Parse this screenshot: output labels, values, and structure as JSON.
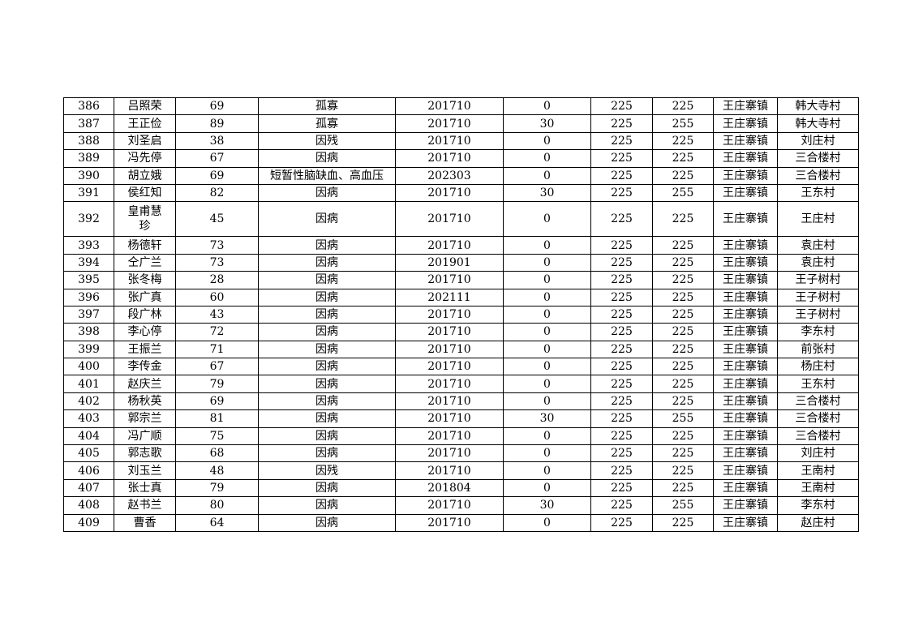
{
  "rows": [
    [
      "386",
      "吕照荣",
      "69",
      "孤寡",
      "201710",
      "0",
      "225",
      "225",
      "王庄寨镇",
      "韩大寺村"
    ],
    [
      "387",
      "王正俭",
      "89",
      "孤寡",
      "201710",
      "30",
      "225",
      "255",
      "王庄寨镇",
      "韩大寺村"
    ],
    [
      "388",
      "刘圣启",
      "38",
      "因残",
      "201710",
      "0",
      "225",
      "225",
      "王庄寨镇",
      "刘庄村"
    ],
    [
      "389",
      "冯先停",
      "67",
      "因病",
      "201710",
      "0",
      "225",
      "225",
      "王庄寨镇",
      "三合楼村"
    ],
    [
      "390",
      "胡立娥",
      "69",
      "短暂性脑缺血、高血压",
      "202303",
      "0",
      "225",
      "225",
      "王庄寨镇",
      "三合楼村"
    ],
    [
      "391",
      "侯红知",
      "82",
      "因病",
      "201710",
      "30",
      "225",
      "255",
      "王庄寨镇",
      "王东村"
    ],
    [
      "392",
      "皇甫慧珍",
      "45",
      "因病",
      "201710",
      "0",
      "225",
      "225",
      "王庄寨镇",
      "王庄村"
    ],
    [
      "393",
      "杨德轩",
      "73",
      "因病",
      "201710",
      "0",
      "225",
      "225",
      "王庄寨镇",
      "袁庄村"
    ],
    [
      "394",
      "仝广兰",
      "73",
      "因病",
      "201901",
      "0",
      "225",
      "225",
      "王庄寨镇",
      "袁庄村"
    ],
    [
      "395",
      "张冬梅",
      "28",
      "因病",
      "201710",
      "0",
      "225",
      "225",
      "王庄寨镇",
      "王子树村"
    ],
    [
      "396",
      "张广真",
      "60",
      "因病",
      "202111",
      "0",
      "225",
      "225",
      "王庄寨镇",
      "王子树村"
    ],
    [
      "397",
      "段广林",
      "43",
      "因病",
      "201710",
      "0",
      "225",
      "225",
      "王庄寨镇",
      "王子树村"
    ],
    [
      "398",
      "李心停",
      "72",
      "因病",
      "201710",
      "0",
      "225",
      "225",
      "王庄寨镇",
      "李东村"
    ],
    [
      "399",
      "王振兰",
      "71",
      "因病",
      "201710",
      "0",
      "225",
      "225",
      "王庄寨镇",
      "前张村"
    ],
    [
      "400",
      "李传金",
      "67",
      "因病",
      "201710",
      "0",
      "225",
      "225",
      "王庄寨镇",
      "杨庄村"
    ],
    [
      "401",
      "赵庆兰",
      "79",
      "因病",
      "201710",
      "0",
      "225",
      "225",
      "王庄寨镇",
      "王东村"
    ],
    [
      "402",
      "杨秋英",
      "69",
      "因病",
      "201710",
      "0",
      "225",
      "225",
      "王庄寨镇",
      "三合楼村"
    ],
    [
      "403",
      "郭宗兰",
      "81",
      "因病",
      "201710",
      "30",
      "225",
      "255",
      "王庄寨镇",
      "三合楼村"
    ],
    [
      "404",
      "冯广顺",
      "75",
      "因病",
      "201710",
      "0",
      "225",
      "225",
      "王庄寨镇",
      "三合楼村"
    ],
    [
      "405",
      "郭志歌",
      "68",
      "因病",
      "201710",
      "0",
      "225",
      "225",
      "王庄寨镇",
      "刘庄村"
    ],
    [
      "406",
      "刘玉兰",
      "48",
      "因残",
      "201710",
      "0",
      "225",
      "225",
      "王庄寨镇",
      "王南村"
    ],
    [
      "407",
      "张士真",
      "79",
      "因病",
      "201804",
      "0",
      "225",
      "225",
      "王庄寨镇",
      "王南村"
    ],
    [
      "408",
      "赵书兰",
      "80",
      "因病",
      "201710",
      "30",
      "225",
      "255",
      "王庄寨镇",
      "李东村"
    ],
    [
      "409",
      "曹香",
      "64",
      "因病",
      "201710",
      "0",
      "225",
      "225",
      "王庄寨镇",
      "赵庄村"
    ]
  ]
}
